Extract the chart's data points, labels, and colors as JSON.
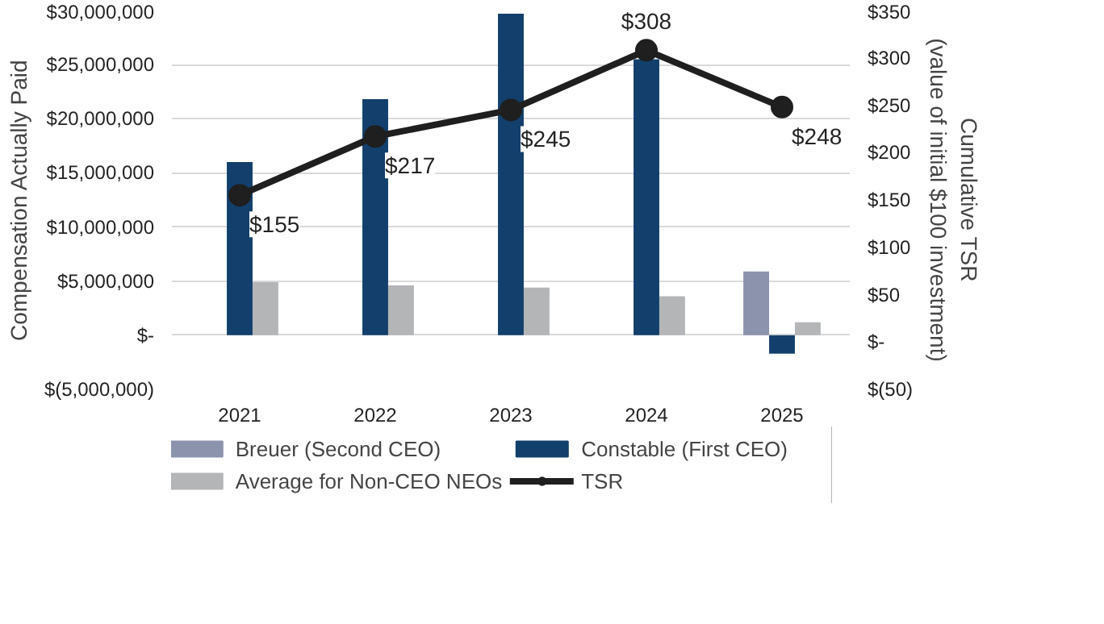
{
  "chart_data": {
    "type": "bar",
    "categories": [
      "2021",
      "2022",
      "2023",
      "2024",
      "2025"
    ],
    "ylabel": "Compensation Actually Paid",
    "y2label": "Cumulative TSR\n(value of initial $100 investment)",
    "ylim": [
      -5000000,
      30000000
    ],
    "yticks": [
      {
        "value": -5000000,
        "label": "$(5,000,000)"
      },
      {
        "value": 0,
        "label": "$-"
      },
      {
        "value": 5000000,
        "label": "$5,000,000"
      },
      {
        "value": 10000000,
        "label": "$10,000,000"
      },
      {
        "value": 15000000,
        "label": "$15,000,000"
      },
      {
        "value": 20000000,
        "label": "$20,000,000"
      },
      {
        "value": 25000000,
        "label": "$25,000,000"
      },
      {
        "value": 30000000,
        "label": "$30,000,000"
      }
    ],
    "y2lim": [
      -50,
      350
    ],
    "y2ticks": [
      {
        "value": -50,
        "label": "$(50)"
      },
      {
        "value": 0,
        "label": "$-"
      },
      {
        "value": 50,
        "label": "$50"
      },
      {
        "value": 100,
        "label": "$100"
      },
      {
        "value": 150,
        "label": "$150"
      },
      {
        "value": 200,
        "label": "$200"
      },
      {
        "value": 250,
        "label": "$250"
      },
      {
        "value": 300,
        "label": "$300"
      },
      {
        "value": 350,
        "label": "$350"
      }
    ],
    "series": [
      {
        "name": "Breuer (Second CEO)",
        "color": "#8c93ad",
        "values": [
          null,
          null,
          null,
          null,
          5900000
        ]
      },
      {
        "name": "Constable (First CEO)",
        "color": "#123f6b",
        "values": [
          16000000,
          21800000,
          29700000,
          25500000,
          -1700000
        ]
      },
      {
        "name": "Average for Non-CEO NEOs",
        "color": "#b4b5b7",
        "values": [
          4900000,
          4600000,
          4400000,
          3600000,
          1200000
        ]
      },
      {
        "name": "TSR",
        "type": "line",
        "axis": "y2",
        "color": "#1f1f1f",
        "marker": "circle",
        "data_labels": true,
        "value_labels": [
          "$155",
          "$217",
          "$245",
          "$308",
          "$248"
        ],
        "values": [
          155,
          217,
          245,
          308,
          248
        ]
      }
    ],
    "grid": "y",
    "legend": "bottom"
  }
}
